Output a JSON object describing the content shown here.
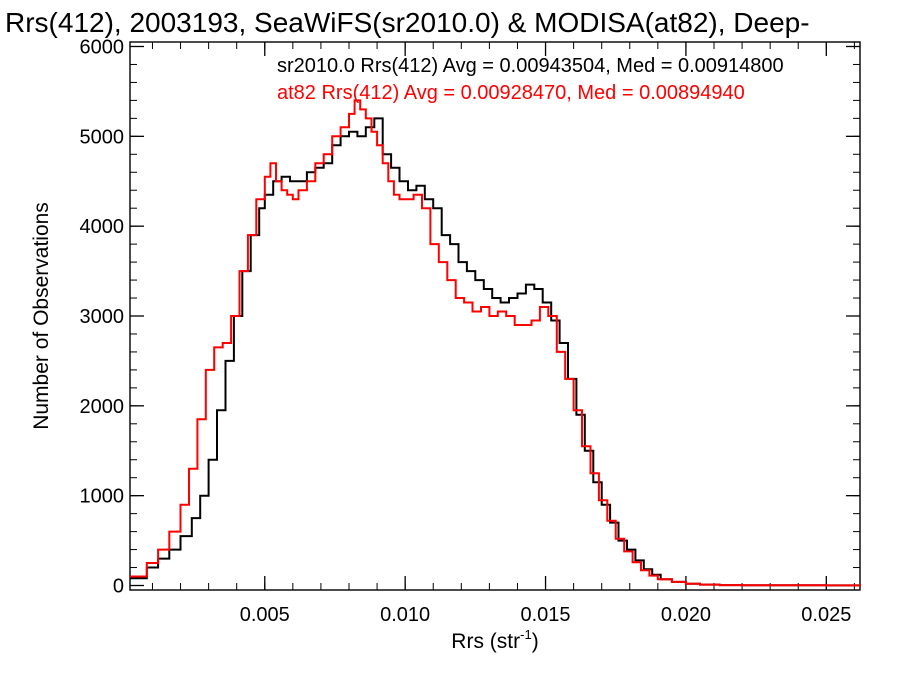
{
  "chart_data": {
    "type": "line",
    "title": "Rrs(412), 2003193, SeaWiFS(sr2010.0) & MODISA(at82), Deep-",
    "xlabel": "Rrs (str",
    "xlabel_sup": "-1",
    "xlabel_tail": ")",
    "ylabel": "Number of Observations",
    "xlim": [
      0.0002,
      0.0262
    ],
    "ylim": [
      -50,
      6050
    ],
    "xticks": [
      0.005,
      0.01,
      0.015,
      0.02,
      0.025
    ],
    "xtick_labels": [
      "0.005",
      "0.010",
      "0.015",
      "0.020",
      "0.025"
    ],
    "yticks": [
      0,
      1000,
      2000,
      3000,
      4000,
      5000,
      6000
    ],
    "ytick_labels": [
      "0",
      "1000",
      "2000",
      "3000",
      "4000",
      "5000",
      "6000"
    ],
    "grid": false,
    "legend_position": "top",
    "series": [
      {
        "name": "sr2010.0 Rrs(412) Avg = 0.00943504, Med = 0.00914800",
        "color": "#000000",
        "x": [
          0.0002,
          0.0008,
          0.0012,
          0.0016,
          0.002,
          0.0024,
          0.0027,
          0.003,
          0.0033,
          0.0036,
          0.0039,
          0.0042,
          0.0045,
          0.0048,
          0.005,
          0.0053,
          0.0056,
          0.0059,
          0.0062,
          0.0065,
          0.0068,
          0.0071,
          0.0074,
          0.0077,
          0.008,
          0.0083,
          0.0086,
          0.0089,
          0.0092,
          0.0095,
          0.0098,
          0.0101,
          0.0104,
          0.0107,
          0.011,
          0.0113,
          0.0116,
          0.0119,
          0.0122,
          0.0125,
          0.0128,
          0.0131,
          0.0134,
          0.0137,
          0.014,
          0.0143,
          0.0146,
          0.0149,
          0.0152,
          0.0155,
          0.0158,
          0.0161,
          0.0164,
          0.0167,
          0.017,
          0.0173,
          0.0176,
          0.0179,
          0.0182,
          0.0185,
          0.0188,
          0.0191,
          0.0195,
          0.02,
          0.0205,
          0.0212,
          0.022,
          0.0235,
          0.025,
          0.0262
        ],
        "y": [
          80,
          200,
          300,
          400,
          550,
          750,
          1000,
          1400,
          1950,
          2500,
          3000,
          3500,
          3900,
          4200,
          4350,
          4500,
          4550,
          4500,
          4500,
          4600,
          4650,
          4700,
          4900,
          5000,
          5050,
          5000,
          5100,
          5200,
          4800,
          4650,
          4500,
          4400,
          4450,
          4300,
          4200,
          3900,
          3800,
          3600,
          3500,
          3400,
          3300,
          3200,
          3150,
          3200,
          3250,
          3350,
          3300,
          3150,
          2950,
          2700,
          2300,
          1900,
          1500,
          1150,
          900,
          700,
          500,
          400,
          280,
          180,
          120,
          70,
          40,
          20,
          10,
          5,
          3,
          2,
          1,
          0
        ]
      },
      {
        "name": "at82 Rrs(412) Avg = 0.00928470, Med = 0.00894940",
        "color": "#ff0000",
        "x": [
          0.0002,
          0.0008,
          0.0012,
          0.0016,
          0.002,
          0.0023,
          0.0026,
          0.0029,
          0.0032,
          0.0035,
          0.0038,
          0.0041,
          0.0044,
          0.0047,
          0.005,
          0.0052,
          0.0054,
          0.0056,
          0.0058,
          0.006,
          0.0062,
          0.0065,
          0.0068,
          0.0071,
          0.0074,
          0.0077,
          0.008,
          0.0082,
          0.0084,
          0.0086,
          0.0088,
          0.009,
          0.0092,
          0.0094,
          0.0096,
          0.0098,
          0.01,
          0.0103,
          0.0106,
          0.0109,
          0.0112,
          0.0115,
          0.0118,
          0.0121,
          0.0124,
          0.0127,
          0.013,
          0.0133,
          0.0136,
          0.0139,
          0.0142,
          0.0145,
          0.0148,
          0.0151,
          0.0154,
          0.0157,
          0.016,
          0.0163,
          0.0166,
          0.0169,
          0.0172,
          0.0175,
          0.0178,
          0.0181,
          0.0184,
          0.0187,
          0.019,
          0.0195,
          0.02,
          0.0205,
          0.0212,
          0.022,
          0.0235,
          0.025,
          0.0262
        ],
        "y": [
          100,
          250,
          400,
          600,
          900,
          1300,
          1850,
          2400,
          2650,
          2700,
          3000,
          3500,
          3900,
          4300,
          4550,
          4700,
          4500,
          4400,
          4350,
          4300,
          4400,
          4500,
          4700,
          4800,
          5000,
          5100,
          5250,
          5400,
          5300,
          5200,
          5050,
          4900,
          4700,
          4500,
          4350,
          4300,
          4300,
          4350,
          4200,
          3800,
          3600,
          3400,
          3200,
          3150,
          3050,
          3100,
          3000,
          3050,
          3000,
          2900,
          2900,
          2950,
          3100,
          3000,
          2600,
          2300,
          1950,
          1550,
          1250,
          950,
          720,
          520,
          380,
          260,
          170,
          110,
          70,
          40,
          20,
          10,
          5,
          3,
          2,
          1,
          0
        ]
      }
    ]
  }
}
